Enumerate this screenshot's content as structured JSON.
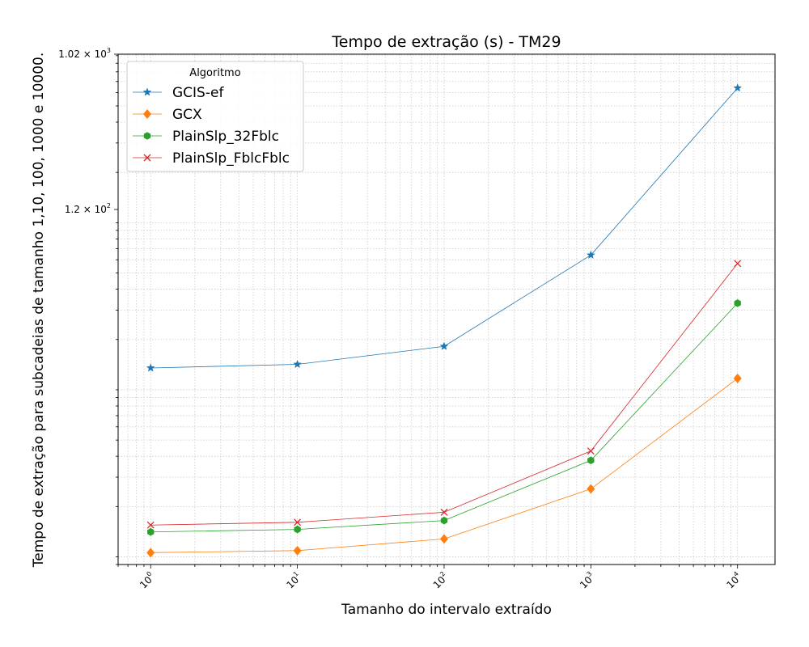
{
  "chart_data": {
    "type": "line",
    "title": "Tempo de extração (s) - TM29",
    "xlabel": "Tamanho do intervalo extraído",
    "ylabel": "Tempo de extração para subcadeias de tamanho 1,10, 100, 1000 e 10000.",
    "xscale": "log",
    "yscale": "log",
    "x": [
      1,
      10,
      100,
      1000,
      10000
    ],
    "xlim": [
      0.6,
      18000
    ],
    "ylim": [
      0.9,
      1020
    ],
    "x_tick_labels": [
      {
        "base": "10",
        "exp": "0"
      },
      {
        "base": "10",
        "exp": "1"
      },
      {
        "base": "10",
        "exp": "2"
      },
      {
        "base": "10",
        "exp": "3"
      },
      {
        "base": "10",
        "exp": "4"
      }
    ],
    "y_tick_labels": [
      {
        "value": 120,
        "mantissa": "1.2 × 10",
        "exp": "2"
      },
      {
        "value": 1020,
        "mantissa": "1.02 × 10",
        "exp": "3"
      }
    ],
    "grid": true,
    "legend_position": "top-left",
    "legend_title": "Algoritmo",
    "series": [
      {
        "name": "GCIS-ef",
        "color": "#1f77b4",
        "marker": "star",
        "values": [
          13.5,
          14.2,
          18.2,
          64,
          640
        ]
      },
      {
        "name": "GCX",
        "color": "#ff7f0e",
        "marker": "diamond",
        "values": [
          1.06,
          1.09,
          1.28,
          2.55,
          11.7
        ]
      },
      {
        "name": "PlainSlp_32Fblc",
        "color": "#2ca02c",
        "marker": "hexagon",
        "values": [
          1.41,
          1.46,
          1.65,
          3.78,
          33
        ]
      },
      {
        "name": "PlainSlp_FblcFblc",
        "color": "#d62728",
        "marker": "x",
        "values": [
          1.55,
          1.61,
          1.85,
          4.3,
          57
        ]
      }
    ]
  }
}
